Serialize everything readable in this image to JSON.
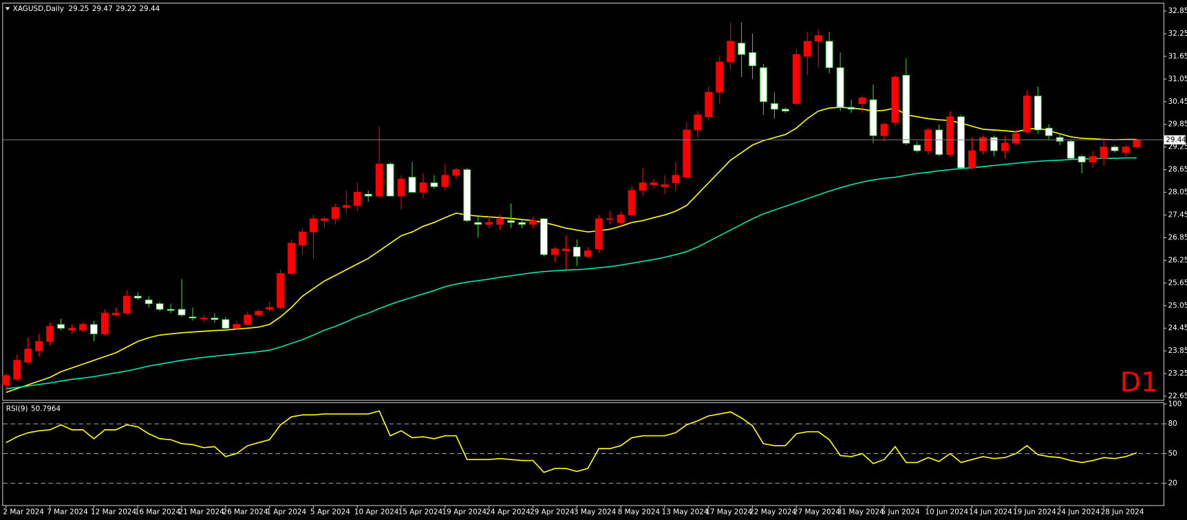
{
  "chart_data": [
    {
      "type": "candlestick",
      "title": "XAGUSD,Daily",
      "annotation": "D1",
      "categories": [
        "2 Mar 2024",
        null,
        null,
        null,
        "7 Mar 2024",
        null,
        null,
        null,
        "12 Mar 2024",
        null,
        null,
        null,
        "16 Mar 2024",
        null,
        null,
        null,
        "21 Mar 2024",
        null,
        null,
        null,
        "26 Mar 2024",
        null,
        null,
        null,
        "1 Apr 2024",
        null,
        null,
        null,
        "5 Apr 2024",
        null,
        null,
        null,
        "10 Apr 2024",
        null,
        null,
        null,
        "15 Apr 2024",
        null,
        null,
        null,
        "19 Apr 2024",
        null,
        null,
        null,
        "24 Apr 2024",
        null,
        null,
        null,
        "29 Apr 2024",
        null,
        null,
        null,
        "3 May 2024",
        null,
        null,
        null,
        "8 May 2024",
        null,
        null,
        null,
        "13 May 2024",
        null,
        null,
        null,
        "17 May 2024",
        null,
        null,
        null,
        "22 May 2024",
        null,
        null,
        null,
        "27 May 2024",
        null,
        null,
        null,
        "31 May 2024",
        null,
        null,
        null,
        "5 Jun 2024",
        null,
        null,
        null,
        "10 Jun 2024",
        null,
        null,
        null,
        "14 Jun 2024",
        null,
        null,
        null,
        "19 Jun 2024",
        null,
        null,
        null,
        "24 Jun 2024",
        null,
        null,
        null,
        "28 Jun 2024",
        null,
        null,
        null
      ],
      "open": [
        22.95,
        23.1,
        23.55,
        23.85,
        24.1,
        24.55,
        24.4,
        24.4,
        24.55,
        24.3,
        24.8,
        24.85,
        25.3,
        25.2,
        25.1,
        24.95,
        24.95,
        24.75,
        24.7,
        24.72,
        24.68,
        24.45,
        24.55,
        24.8,
        24.95,
        25.0,
        25.9,
        26.65,
        27.0,
        27.3,
        27.35,
        27.65,
        27.7,
        28.0,
        27.95,
        28.8,
        27.95,
        28.45,
        28.05,
        28.3,
        28.2,
        28.5,
        28.65,
        27.25,
        27.2,
        27.2,
        27.3,
        27.25,
        27.2,
        27.35,
        26.4,
        26.5,
        26.6,
        26.35,
        26.55,
        27.35,
        27.25,
        27.45,
        28.1,
        28.25,
        28.2,
        28.3,
        28.45,
        29.7,
        30.05,
        30.7,
        31.5,
        32.0,
        31.75,
        31.35,
        30.4,
        30.25,
        30.4,
        31.65,
        32.05,
        32.05,
        31.35,
        30.3,
        30.4,
        30.5,
        29.55,
        29.9,
        31.15,
        29.3,
        29.15,
        29.7,
        29.05,
        30.05,
        28.7,
        29.15,
        29.5,
        29.15,
        29.35,
        29.65,
        30.6,
        29.75,
        29.5,
        29.4,
        29.0,
        28.85,
        28.95,
        29.25,
        29.1,
        29.25
      ],
      "high": [
        23.25,
        23.75,
        24.2,
        24.3,
        24.6,
        24.7,
        24.55,
        24.6,
        24.65,
        24.95,
        25.0,
        25.45,
        25.4,
        25.3,
        25.15,
        25.1,
        25.75,
        25.0,
        24.8,
        24.85,
        24.75,
        24.65,
        24.9,
        24.95,
        25.15,
        26.0,
        26.8,
        27.1,
        27.45,
        27.4,
        27.75,
        28.1,
        28.3,
        28.1,
        29.8,
        28.85,
        28.5,
        28.85,
        28.55,
        28.5,
        28.8,
        28.7,
        28.7,
        27.4,
        27.4,
        27.45,
        27.75,
        27.35,
        27.4,
        27.35,
        26.6,
        26.9,
        26.8,
        26.6,
        27.45,
        27.55,
        27.55,
        28.2,
        28.7,
        28.4,
        28.5,
        28.85,
        29.9,
        30.2,
        30.85,
        31.65,
        32.55,
        32.55,
        32.25,
        31.45,
        30.7,
        30.3,
        31.85,
        32.3,
        32.35,
        32.3,
        31.75,
        30.5,
        30.6,
        30.9,
        29.9,
        31.15,
        31.6,
        29.4,
        29.75,
        29.85,
        30.2,
        30.1,
        29.5,
        29.55,
        29.55,
        29.55,
        29.7,
        30.75,
        30.85,
        29.85,
        29.6,
        29.45,
        29.05,
        29.15,
        29.5,
        29.3,
        29.3,
        29.47
      ],
      "low": [
        22.8,
        23.05,
        23.5,
        23.7,
        24.0,
        24.4,
        24.3,
        24.35,
        24.1,
        24.25,
        24.75,
        24.8,
        25.2,
        25.0,
        24.9,
        24.85,
        24.75,
        24.65,
        24.6,
        24.6,
        24.4,
        24.4,
        24.5,
        24.75,
        24.9,
        24.95,
        25.85,
        26.4,
        26.3,
        27.1,
        27.2,
        27.5,
        27.55,
        27.8,
        27.9,
        27.95,
        27.6,
        28.05,
        27.9,
        28.15,
        28.1,
        28.4,
        27.25,
        26.85,
        27.1,
        27.05,
        27.1,
        27.1,
        27.1,
        26.35,
        26.2,
        26.0,
        26.1,
        26.3,
        26.45,
        27.2,
        27.15,
        27.4,
        27.95,
        28.15,
        28.0,
        28.1,
        28.4,
        29.5,
        29.95,
        30.4,
        31.3,
        31.1,
        31.05,
        30.1,
        30.0,
        30.15,
        30.35,
        31.15,
        31.35,
        31.2,
        30.2,
        30.15,
        30.15,
        29.35,
        29.4,
        29.8,
        29.3,
        29.1,
        29.05,
        29.0,
        29.0,
        28.65,
        28.65,
        29.05,
        29.0,
        28.95,
        29.3,
        29.6,
        29.6,
        29.45,
        29.3,
        28.9,
        28.55,
        28.7,
        28.75,
        29.1,
        29.0,
        29.22
      ],
      "close": [
        23.2,
        23.6,
        23.9,
        24.1,
        24.5,
        24.45,
        24.45,
        24.55,
        24.3,
        24.85,
        24.85,
        25.3,
        25.25,
        25.1,
        24.95,
        24.92,
        24.8,
        24.72,
        24.72,
        24.68,
        24.45,
        24.55,
        24.8,
        24.9,
        25.0,
        25.9,
        26.7,
        27.0,
        27.35,
        27.35,
        27.65,
        27.7,
        28.05,
        27.95,
        28.8,
        27.95,
        28.4,
        28.05,
        28.3,
        28.2,
        28.5,
        28.65,
        27.3,
        27.2,
        27.25,
        27.35,
        27.25,
        27.2,
        27.3,
        26.4,
        26.55,
        26.55,
        26.35,
        26.5,
        27.35,
        27.35,
        27.45,
        28.1,
        28.3,
        28.3,
        28.25,
        28.5,
        29.7,
        30.1,
        30.7,
        31.5,
        32.05,
        31.7,
        31.4,
        30.45,
        30.25,
        30.2,
        31.7,
        32.05,
        32.2,
        31.35,
        30.3,
        30.25,
        30.55,
        29.55,
        29.85,
        31.1,
        29.35,
        29.15,
        29.7,
        29.05,
        30.05,
        28.7,
        29.15,
        29.5,
        29.15,
        29.35,
        29.6,
        30.6,
        29.7,
        29.55,
        29.4,
        28.95,
        28.85,
        29.0,
        29.25,
        29.15,
        29.25,
        29.44
      ],
      "up_color": "#ff0000",
      "down_color": "#ffffff",
      "up_wick_color": "#ff0000",
      "down_wick_color": "#33cc33",
      "series": [
        {
          "color": "#ffff00",
          "values": [
            22.75,
            22.85,
            22.95,
            23.05,
            23.15,
            23.3,
            23.4,
            23.5,
            23.6,
            23.7,
            23.8,
            23.95,
            24.1,
            24.2,
            24.27,
            24.3,
            24.33,
            24.35,
            24.37,
            24.39,
            24.4,
            24.43,
            24.45,
            24.48,
            24.55,
            24.75,
            25.0,
            25.3,
            25.5,
            25.7,
            25.85,
            26.0,
            26.15,
            26.3,
            26.5,
            26.7,
            26.9,
            27.0,
            27.15,
            27.25,
            27.38,
            27.5,
            27.45,
            27.42,
            27.4,
            27.38,
            27.36,
            27.33,
            27.3,
            27.25,
            27.18,
            27.1,
            27.05,
            27.0,
            27.03,
            27.07,
            27.15,
            27.25,
            27.3,
            27.38,
            27.45,
            27.55,
            27.7,
            28.0,
            28.3,
            28.6,
            28.9,
            29.1,
            29.3,
            29.42,
            29.5,
            29.58,
            29.75,
            30.0,
            30.2,
            30.28,
            30.3,
            30.28,
            30.25,
            30.2,
            30.22,
            30.28,
            30.1,
            30.05,
            30.0,
            29.97,
            29.95,
            29.88,
            29.8,
            29.72,
            29.7,
            29.68,
            29.65,
            29.72,
            29.75,
            29.68,
            29.6,
            29.52,
            29.48,
            29.47,
            29.45,
            29.44,
            29.45,
            29.45
          ]
        },
        {
          "color": "#00e5b0",
          "values": [
            22.85,
            22.88,
            22.92,
            22.96,
            23.0,
            23.05,
            23.1,
            23.13,
            23.17,
            23.22,
            23.27,
            23.32,
            23.38,
            23.45,
            23.5,
            23.55,
            23.6,
            23.64,
            23.68,
            23.71,
            23.74,
            23.77,
            23.8,
            23.83,
            23.87,
            23.95,
            24.05,
            24.15,
            24.27,
            24.4,
            24.5,
            24.62,
            24.75,
            24.85,
            24.97,
            25.08,
            25.18,
            25.27,
            25.36,
            25.45,
            25.55,
            25.62,
            25.67,
            25.71,
            25.75,
            25.8,
            25.84,
            25.88,
            25.92,
            25.95,
            25.97,
            25.99,
            26.0,
            26.02,
            26.05,
            26.08,
            26.12,
            26.17,
            26.22,
            26.27,
            26.33,
            26.4,
            26.48,
            26.6,
            26.75,
            26.9,
            27.05,
            27.2,
            27.35,
            27.48,
            27.58,
            27.68,
            27.78,
            27.88,
            27.98,
            28.08,
            28.17,
            28.25,
            28.32,
            28.38,
            28.42,
            28.45,
            28.5,
            28.55,
            28.58,
            28.62,
            28.65,
            28.68,
            28.7,
            28.73,
            28.76,
            28.79,
            28.82,
            28.85,
            28.87,
            28.89,
            28.9,
            28.92,
            28.93,
            28.94,
            28.95,
            28.95,
            28.96,
            28.96
          ]
        }
      ],
      "price_line_color": "#808080",
      "ylim": [
        22.55,
        33.05
      ],
      "yticks": [
        32.85,
        32.25,
        31.65,
        31.05,
        30.45,
        29.85,
        29.25,
        28.65,
        28.05,
        27.45,
        26.85,
        26.25,
        25.65,
        25.05,
        24.45,
        23.85,
        23.25,
        22.65
      ],
      "grid": false
    },
    {
      "type": "line",
      "title": "RSI(9)",
      "color": "#ffff00",
      "values": [
        61,
        67,
        71,
        73,
        74,
        79,
        74,
        74,
        65,
        74,
        74,
        79,
        77,
        70,
        65,
        64,
        60,
        59,
        56,
        57,
        47,
        50,
        58,
        61,
        64,
        79,
        87,
        89,
        89,
        90,
        90,
        90,
        90,
        90,
        93,
        68,
        73,
        66,
        67,
        65,
        68,
        68,
        44,
        44,
        44,
        45,
        44,
        43,
        43,
        31,
        35,
        35,
        32,
        35,
        55,
        55,
        58,
        66,
        68,
        68,
        68,
        71,
        79,
        83,
        88,
        90,
        92,
        86,
        78,
        60,
        58,
        58,
        70,
        72,
        72,
        64,
        48,
        47,
        50,
        40,
        44,
        57,
        41,
        41,
        46,
        42,
        50,
        41,
        44,
        47,
        45,
        46,
        50,
        58,
        49,
        47,
        46,
        43,
        41,
        43,
        46,
        45,
        47,
        50.7964
      ],
      "ylim": [
        -2,
        101
      ],
      "yticks": [
        100,
        80,
        50,
        20
      ],
      "levels": [
        80,
        50,
        20
      ],
      "grid": false
    }
  ]
}
